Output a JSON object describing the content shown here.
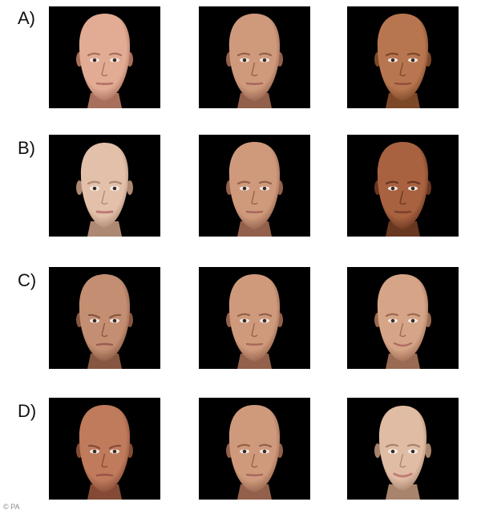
{
  "rows": [
    {
      "label": "A)",
      "faces": [
        {
          "skin": "#e2ab93",
          "shade": "#a8705c",
          "lip": "#b46e66",
          "gender": "male",
          "expression": "neutral"
        },
        {
          "skin": "#cf9a7c",
          "shade": "#93604b",
          "lip": "#a8665a",
          "gender": "male",
          "expression": "neutral"
        },
        {
          "skin": "#b87650",
          "shade": "#7c4828",
          "lip": "#8e4e3a",
          "gender": "male",
          "expression": "neutral"
        }
      ]
    },
    {
      "label": "B)",
      "faces": [
        {
          "skin": "#e3c0aa",
          "shade": "#ad8872",
          "lip": "#c07a78",
          "gender": "female",
          "expression": "neutral"
        },
        {
          "skin": "#cf9a7c",
          "shade": "#93604b",
          "lip": "#a8665a",
          "gender": "male",
          "expression": "neutral"
        },
        {
          "skin": "#a86240",
          "shade": "#693620",
          "lip": "#7c3e2c",
          "gender": "male",
          "expression": "neutral"
        }
      ]
    },
    {
      "label": "C)",
      "faces": [
        {
          "skin": "#c38e72",
          "shade": "#875640",
          "lip": "#9a5c50",
          "gender": "male",
          "expression": "angry"
        },
        {
          "skin": "#cf9a7c",
          "shade": "#93604b",
          "lip": "#a8665a",
          "gender": "male",
          "expression": "neutral"
        },
        {
          "skin": "#d6a486",
          "shade": "#9a6a52",
          "lip": "#b06c62",
          "gender": "male",
          "expression": "smiling"
        }
      ]
    },
    {
      "label": "D)",
      "faces": [
        {
          "skin": "#c07a5c",
          "shade": "#844a36",
          "lip": "#9a5448",
          "gender": "male",
          "expression": "angry"
        },
        {
          "skin": "#cf9a7c",
          "shade": "#93604b",
          "lip": "#a8665a",
          "gender": "male",
          "expression": "neutral"
        },
        {
          "skin": "#e0bca4",
          "shade": "#a8846c",
          "lip": "#c07c76",
          "gender": "female",
          "expression": "smiling"
        }
      ]
    }
  ],
  "credit": "© PA"
}
